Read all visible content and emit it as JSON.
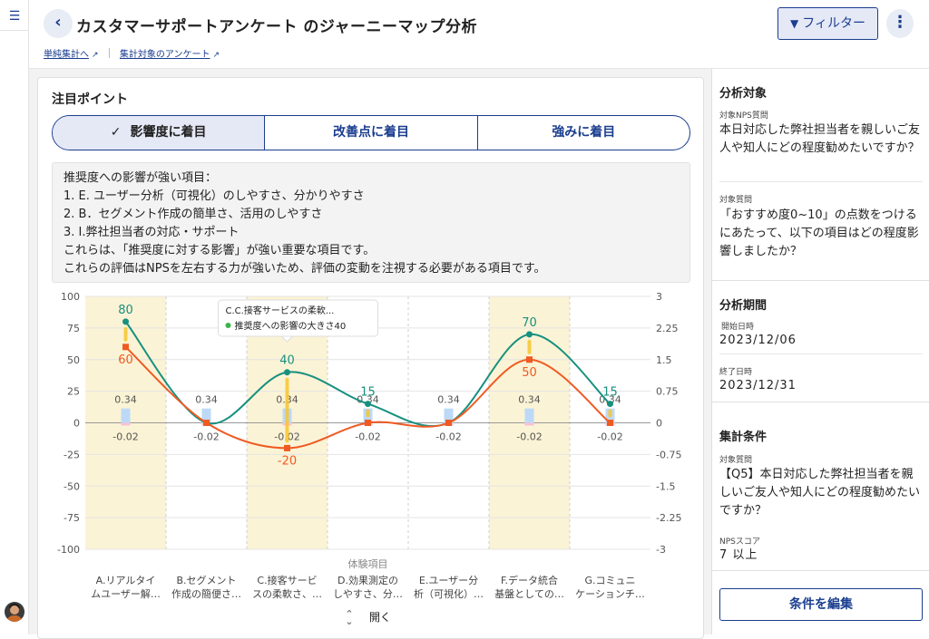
{
  "header": {
    "title": "カスタマーサポートアンケート のジャーニーマップ分析",
    "filter_label": "フィルター",
    "back_icon": "chevron-left-icon",
    "more_icon": "more-vertical-icon",
    "links": [
      {
        "label": "単純集計へ"
      },
      {
        "label": "集計対象のアンケート"
      }
    ]
  },
  "focus": {
    "title": "注目ポイント",
    "tabs": [
      {
        "label": "影響度に着目",
        "active": true
      },
      {
        "label": "改善点に着目",
        "active": false
      },
      {
        "label": "強みに着目",
        "active": false
      }
    ],
    "note_lines": [
      "推奨度への影響が強い項目：",
      " 1. E. ユーザー分析（可視化）のしやすさ、分かりやすさ",
      " 2. B．セグメント作成の簡単さ、活用のしやすさ",
      " 3. I.弊社担当者の対応・サポート",
      "これらは、「推奨度に対する影響」が強い重要な項目です。",
      "これらの評価はNPSを左右する力が強いため、評価の変動を注視する必要がある項目です。"
    ]
  },
  "chart_data": {
    "type": "line",
    "xlabel": "体験項目",
    "categories_top": [
      "A.リアルタイ",
      "B.セグメント",
      "C.接客サービ",
      "D.効果測定の",
      "E.ユーザー分",
      "F.データ統合",
      "G.コミュニ"
    ],
    "categories_bottom": [
      "ムユーザー解…",
      "作成の簡便さ…",
      "スの柔軟さ、…",
      "しやすさ、分…",
      "析（可視化）…",
      "基盤としての…",
      "ケーションチ…"
    ],
    "highlighted": [
      0,
      2,
      5
    ],
    "ylim_left": [
      -100,
      100
    ],
    "yticks_left": [
      "100",
      "75",
      "50",
      "25",
      "0",
      "-25",
      "-50",
      "-75",
      "-100"
    ],
    "ylim_right": [
      -3,
      3
    ],
    "yticks_right": [
      "3",
      "2.25",
      "1.5",
      "0.75",
      "0",
      "-0.75",
      "-1.5",
      "-2.25",
      "-3"
    ],
    "series": [
      {
        "color": "#17907f",
        "values": [
          80,
          0,
          40,
          15,
          0,
          70,
          15
        ],
        "labels": [
          "80",
          "",
          "40",
          "15",
          "",
          "70",
          "15"
        ]
      },
      {
        "color": "#ef5a23",
        "values": [
          60,
          0,
          -20,
          0,
          0,
          50,
          0
        ],
        "labels": [
          "60",
          "",
          "-20",
          "",
          "",
          "50",
          ""
        ]
      }
    ],
    "bars_pos": [
      0.34,
      0.34,
      0.34,
      0.34,
      0.34,
      0.34,
      0.34
    ],
    "bars_neg": [
      -0.02,
      -0.02,
      -0.02,
      -0.02,
      -0.02,
      -0.02,
      -0.02
    ],
    "bar_pos_color": "#bcd9f7",
    "bar_neg_color": "#f9c0d6",
    "highlight_color": "#fbf3d5",
    "tooltip": {
      "title": "C.C.接客サービスの柔軟...",
      "line": "推奨度への影響の大きさ40"
    },
    "expand_label": "開く"
  },
  "sidebar": {
    "target": {
      "title": "分析対象",
      "nps_label": "対象NPS質問",
      "nps_value": "本日対応した弊社担当者を親しいご友人や知人にどの程度勧めたいですか？",
      "q_label": "対象質問",
      "q_value": "「おすすめ度0~10」の点数をつけるにあたって、以下の項目はどの程度影響しましたか？"
    },
    "period": {
      "title": "分析期間",
      "start_label": "開始日時",
      "start_value": "2023/12/06",
      "end_label": "終了日時",
      "end_value": "2023/12/31"
    },
    "conditions": {
      "title": "集計条件",
      "q_label": "対象質問",
      "q_value": "【Q5】本日対応した弊社担当者を親しいご友人や知人にどの程度勧めたいですか？",
      "nps_label": "NPSスコア",
      "nps_value": "7 以上"
    },
    "edit_label": "条件を編集"
  }
}
